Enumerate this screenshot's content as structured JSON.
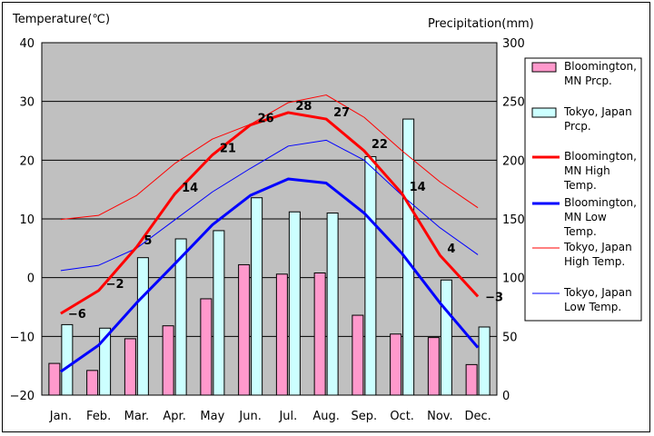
{
  "chart_data": {
    "type": "bar+line",
    "categories": [
      "Jan.",
      "Feb.",
      "Mar.",
      "Apr.",
      "May",
      "Jun.",
      "Jul.",
      "Aug.",
      "Sep.",
      "Oct.",
      "Nov.",
      "Dec."
    ],
    "left_axis": {
      "label": "Temperature(℃)",
      "ticks": [
        "40",
        "30",
        "20",
        "10",
        "0",
        "−10",
        "−20"
      ],
      "range": [
        -20,
        40
      ]
    },
    "right_axis": {
      "label": "Precipitation(mm)",
      "ticks": [
        "300",
        "250",
        "200",
        "150",
        "100",
        "50",
        "0"
      ],
      "range": [
        0,
        300
      ]
    },
    "bar_series": [
      {
        "name": "Bloomington, MN Prcp.",
        "color": "#ff99cc",
        "values": [
          27,
          21,
          48,
          59,
          82,
          111,
          103,
          104,
          68,
          52,
          49,
          26
        ]
      },
      {
        "name": "Tokyo, Japan Prcp.",
        "color": "#ccffff",
        "values": [
          60,
          57,
          117,
          133,
          140,
          168,
          156,
          155,
          203,
          235,
          98,
          58
        ]
      }
    ],
    "line_series": [
      {
        "name": "Bloomington, MN High Temp.",
        "color": "#ff0000",
        "width": "thick",
        "values": [
          -6.1,
          -2.2,
          5.2,
          14.2,
          20.9,
          26.0,
          28.1,
          27.0,
          21.6,
          14.3,
          3.8,
          -3.2
        ],
        "labels": [
          "−6",
          "−2",
          "5",
          "14",
          "21",
          "26",
          "28",
          "27",
          "22",
          "14",
          "4",
          "−3"
        ]
      },
      {
        "name": "Bloomington, MN Low Temp.",
        "color": "#0000ff",
        "width": "thick",
        "values": [
          -16.0,
          -11.5,
          -4.3,
          2.3,
          9.0,
          14.0,
          16.8,
          16.1,
          11.0,
          4.1,
          -4.3,
          -11.9
        ]
      },
      {
        "name": "Tokyo, Japan High Temp.",
        "color": "#ff0000",
        "width": "thin",
        "values": [
          9.9,
          10.6,
          14.0,
          19.4,
          23.6,
          26.1,
          29.8,
          31.1,
          27.3,
          21.6,
          16.3,
          11.9
        ]
      },
      {
        "name": "Tokyo, Japan Low Temp.",
        "color": "#0000ff",
        "width": "thin",
        "values": [
          1.2,
          2.1,
          5.0,
          9.8,
          14.6,
          18.6,
          22.4,
          23.4,
          20.0,
          14.0,
          8.5,
          3.9
        ]
      }
    ],
    "legend": {
      "placement": "right",
      "entries": [
        {
          "lines": [
            "Bloomington,",
            "MN Prcp."
          ]
        },
        {
          "lines": [
            "Tokyo, Japan",
            "Prcp."
          ]
        },
        {
          "lines": [
            "Bloomington,",
            "MN High",
            "Temp."
          ]
        },
        {
          "lines": [
            "Bloomington,",
            "MN Low",
            "Temp."
          ]
        },
        {
          "lines": [
            "Tokyo, Japan",
            "High Temp."
          ]
        },
        {
          "lines": [
            "Tokyo, Japan",
            "Low Temp."
          ]
        }
      ]
    },
    "plot_background": "#c0c0c0",
    "grid": "horizontal"
  }
}
